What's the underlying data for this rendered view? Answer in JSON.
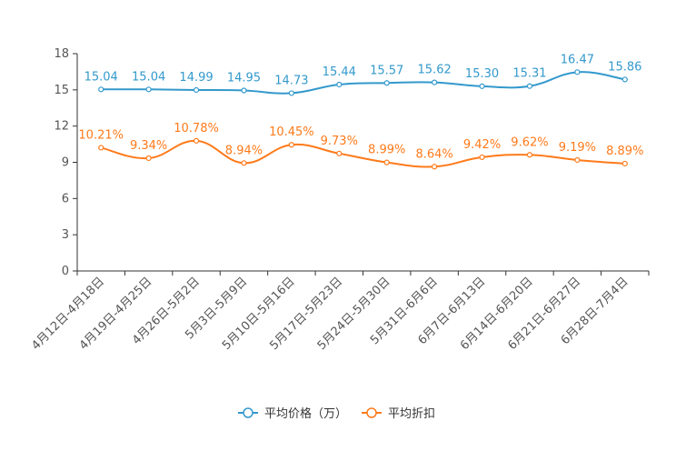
{
  "chart_data": {
    "type": "line",
    "title": "",
    "xlabel": "",
    "ylabel": "",
    "ylim": [
      0,
      18
    ],
    "yticks": [
      0,
      3,
      6,
      9,
      12,
      15,
      18
    ],
    "grid": false,
    "legend_position": "bottom-center",
    "categories": [
      "4月12日-4月18日",
      "4月19日-4月25日",
      "4月26日-5月2日",
      "5月3日-5月9日",
      "5月10日-5月16日",
      "5月17日-5月23日",
      "5月24日-5月30日",
      "5月31日-6月6日",
      "6月7日-6月13日",
      "6月14日-6月20日",
      "6月21日-6月27日",
      "6月28日-7月4日"
    ],
    "series": [
      {
        "name": "平均价格（万）",
        "color": "#3399cc",
        "values": [
          15.04,
          15.04,
          14.99,
          14.95,
          14.73,
          15.44,
          15.57,
          15.62,
          15.3,
          15.31,
          16.47,
          15.86
        ],
        "labels": [
          "15.04",
          "15.04",
          "14.99",
          "14.95",
          "14.73",
          "15.44",
          "15.57",
          "15.62",
          "15.30",
          "15.31",
          "16.47",
          "15.86"
        ]
      },
      {
        "name": "平均折扣",
        "color": "#ff7a1a",
        "values": [
          10.21,
          9.34,
          10.78,
          8.94,
          10.45,
          9.73,
          8.99,
          8.64,
          9.42,
          9.62,
          9.19,
          8.89
        ],
        "labels": [
          "10.21%",
          "9.34%",
          "10.78%",
          "8.94%",
          "10.45%",
          "9.73%",
          "8.99%",
          "8.64%",
          "9.42%",
          "9.62%",
          "9.19%",
          "8.89%"
        ]
      }
    ]
  }
}
